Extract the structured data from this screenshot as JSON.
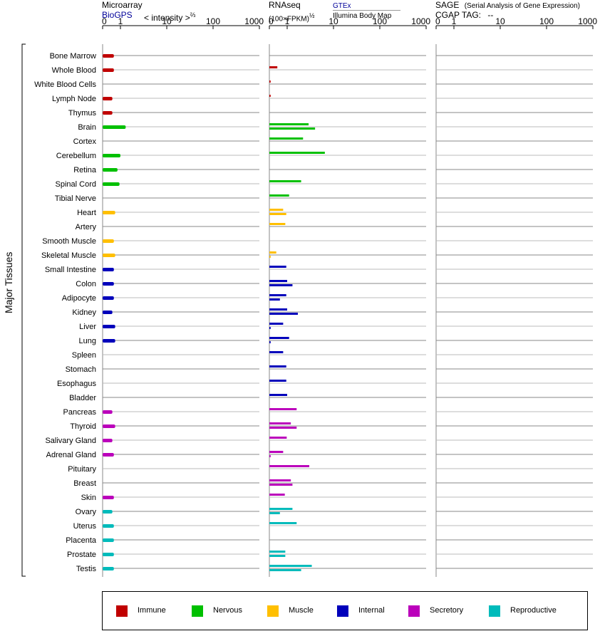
{
  "header": {
    "microarray": {
      "title": "Microarray",
      "source": "BioGPS",
      "unit": "< intensity >",
      "unit_exponent": "⅔"
    },
    "rnaseq": {
      "title": "RNAseq",
      "unit": "(100×FPKM)",
      "unit_exponent": "½",
      "source_top": "GTEx",
      "source_bottom": "Illumina Body Map"
    },
    "sage": {
      "title": "SAGE",
      "subtitle": "(Serial Analysis of Gene Expression)",
      "tag_label": "CGAP TAG:",
      "tag_value": "--"
    }
  },
  "chart_data": {
    "type": "bar",
    "orientation": "horizontal",
    "ylabel": "Major Tissues",
    "axis_ticks": [
      "0",
      "1",
      "10",
      "100",
      "1000"
    ],
    "axis_tick_values": [
      0,
      1,
      10,
      100,
      1000
    ],
    "categories": [
      "Bone Marrow",
      "Whole Blood",
      "White Blood Cells",
      "Lymph Node",
      "Thymus",
      "Brain",
      "Cortex",
      "Cerebellum",
      "Retina",
      "Spinal Cord",
      "Tibial Nerve",
      "Heart",
      "Artery",
      "Smooth Muscle",
      "Skeletal Muscle",
      "Small Intestine",
      "Colon",
      "Adipocyte",
      "Kidney",
      "Liver",
      "Lung",
      "Spleen",
      "Stomach",
      "Esophagus",
      "Bladder",
      "Pancreas",
      "Thyroid",
      "Salivary Gland",
      "Adrenal Gland",
      "Pituitary",
      "Breast",
      "Skin",
      "Ovary",
      "Uterus",
      "Placenta",
      "Prostate",
      "Testis"
    ],
    "groups": [
      "Immune",
      "Immune",
      "Immune",
      "Immune",
      "Immune",
      "Nervous",
      "Nervous",
      "Nervous",
      "Nervous",
      "Nervous",
      "Nervous",
      "Muscle",
      "Muscle",
      "Muscle",
      "Muscle",
      "Internal",
      "Internal",
      "Internal",
      "Internal",
      "Internal",
      "Internal",
      "Internal",
      "Internal",
      "Internal",
      "Internal",
      "Secretory",
      "Secretory",
      "Secretory",
      "Secretory",
      "Secretory",
      "Secretory",
      "Secretory",
      "Reproductive",
      "Reproductive",
      "Reproductive",
      "Reproductive",
      "Reproductive"
    ],
    "panels": [
      {
        "name": "Microarray",
        "values": [
          0.4,
          0.4,
          null,
          0.3,
          0.3,
          1.3,
          null,
          1.0,
          0.7,
          0.9,
          null,
          0.5,
          null,
          0.4,
          0.5,
          0.4,
          0.4,
          0.4,
          0.3,
          0.5,
          0.5,
          null,
          null,
          null,
          null,
          0.3,
          0.5,
          0.3,
          0.4,
          null,
          null,
          0.4,
          0.3,
          0.4,
          0.4,
          0.4,
          0.4
        ]
      },
      {
        "name": "GTEx",
        "values": [
          null,
          0.2,
          0.005,
          0.005,
          null,
          2.9,
          2.2,
          6.5,
          null,
          2.0,
          1.1,
          0.6,
          0.8,
          null,
          0.15,
          0.9,
          1.0,
          0.9,
          1.0,
          0.6,
          1.1,
          0.6,
          0.9,
          0.9,
          1.0,
          1.6,
          1.2,
          0.95,
          0.6,
          3.0,
          1.2,
          0.75,
          1.3,
          1.6,
          null,
          0.8,
          3.4
        ]
      },
      {
        "name": "Illumina Body Map",
        "values": [
          null,
          null,
          null,
          null,
          null,
          4.0,
          null,
          null,
          null,
          null,
          null,
          0.9,
          null,
          null,
          0.005,
          null,
          1.3,
          0.35,
          1.7,
          0.005,
          0.005,
          null,
          null,
          null,
          null,
          null,
          1.6,
          null,
          0.005,
          null,
          1.3,
          null,
          0.35,
          null,
          null,
          0.8,
          2.0
        ]
      },
      {
        "name": "SAGE",
        "values": []
      }
    ]
  },
  "legend": [
    {
      "label": "Immune",
      "color": "#c00000"
    },
    {
      "label": "Nervous",
      "color": "#00c000"
    },
    {
      "label": "Muscle",
      "color": "#ffbf00"
    },
    {
      "label": "Internal",
      "color": "#0000bb"
    },
    {
      "label": "Secretory",
      "color": "#bb00bb"
    },
    {
      "label": "Reproductive",
      "color": "#00bbbb"
    }
  ]
}
